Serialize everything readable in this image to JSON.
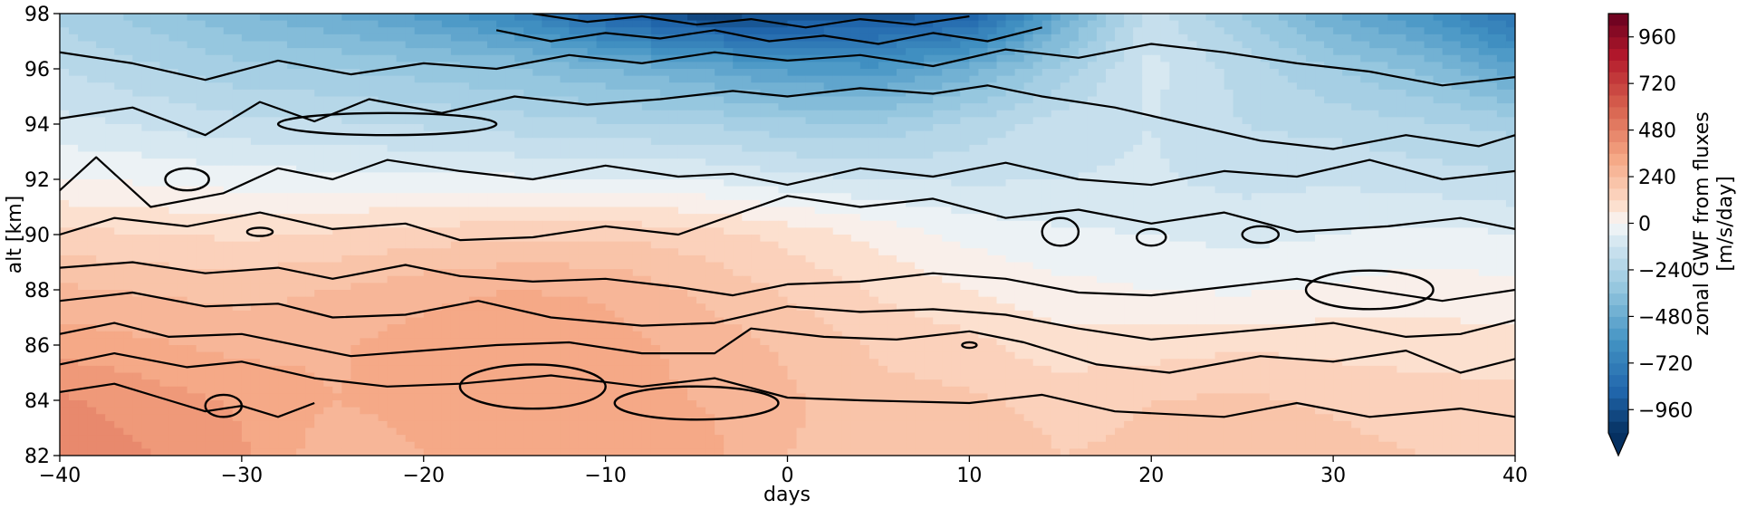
{
  "chart_data": {
    "type": "heatmap",
    "xlabel": "days",
    "ylabel": "alt [km]",
    "xlim": [
      -40,
      40
    ],
    "ylim": [
      82,
      98
    ],
    "xticks": [
      -40,
      -30,
      -20,
      -10,
      0,
      10,
      20,
      30,
      40
    ],
    "yticks": [
      82,
      84,
      86,
      88,
      90,
      92,
      94,
      96,
      98
    ],
    "grid": false,
    "colormap": "RdBu_r",
    "colorbar": {
      "label": "zonal GWF from fluxes\n[m/s/day]",
      "range": [
        -1080,
        1080
      ],
      "level_step": 60,
      "ticks": [
        -960,
        -720,
        -480,
        -240,
        0,
        240,
        480,
        720,
        960
      ],
      "extend": "min"
    },
    "field": {
      "x": [
        -40,
        -35,
        -30,
        -25,
        -20,
        -15,
        -10,
        -5,
        0,
        5,
        10,
        15,
        20,
        25,
        30,
        35,
        40
      ],
      "y": [
        82,
        84,
        86,
        88,
        90,
        92,
        94,
        96,
        98
      ],
      "values": [
        [
          460,
          420,
          370,
          260,
          300,
          320,
          310,
          330,
          240,
          220,
          230,
          180,
          190,
          220,
          200,
          180,
          150
        ],
        [
          430,
          390,
          350,
          300,
          320,
          340,
          320,
          300,
          250,
          200,
          190,
          160,
          180,
          190,
          170,
          150,
          140
        ],
        [
          340,
          310,
          280,
          290,
          330,
          360,
          330,
          280,
          230,
          170,
          140,
          80,
          90,
          110,
          100,
          90,
          80
        ],
        [
          250,
          230,
          220,
          240,
          280,
          300,
          290,
          230,
          170,
          110,
          60,
          20,
          0,
          -10,
          10,
          30,
          20
        ],
        [
          140,
          120,
          110,
          130,
          150,
          170,
          170,
          150,
          100,
          40,
          -20,
          -50,
          -60,
          -80,
          -60,
          -40,
          -60
        ],
        [
          0,
          -10,
          -30,
          -40,
          -40,
          -50,
          -60,
          -60,
          -100,
          -120,
          -130,
          -120,
          -110,
          -140,
          -130,
          -150,
          -170
        ],
        [
          -100,
          -130,
          -160,
          -170,
          -190,
          -210,
          -230,
          -240,
          -280,
          -290,
          -220,
          -150,
          -120,
          -180,
          -200,
          -230,
          -260
        ],
        [
          -180,
          -230,
          -280,
          -300,
          -330,
          -360,
          -420,
          -480,
          -560,
          -580,
          -460,
          -280,
          -100,
          -200,
          -300,
          -380,
          -520
        ],
        [
          -260,
          -330,
          -420,
          -480,
          -560,
          -680,
          -860,
          -1000,
          -980,
          -940,
          -900,
          -500,
          -150,
          -300,
          -480,
          -600,
          -800
        ]
      ]
    },
    "contour_lines": [
      {
        "polyline": [
          [
            -40,
            84.3
          ],
          [
            -37,
            84.6
          ],
          [
            -34,
            84.0
          ],
          [
            -32,
            83.6
          ],
          [
            -30,
            83.8
          ],
          [
            -28,
            83.4
          ],
          [
            -26,
            83.9
          ]
        ]
      },
      {
        "polyline": [
          [
            -40,
            85.3
          ],
          [
            -37,
            85.7
          ],
          [
            -33,
            85.2
          ],
          [
            -30,
            85.4
          ],
          [
            -26,
            84.8
          ],
          [
            -22,
            84.5
          ],
          [
            -18,
            84.6
          ],
          [
            -13,
            84.9
          ],
          [
            -8,
            84.5
          ],
          [
            -4,
            84.8
          ],
          [
            0,
            84.1
          ],
          [
            4,
            84.0
          ],
          [
            10,
            83.9
          ],
          [
            14,
            84.2
          ],
          [
            18,
            83.6
          ],
          [
            24,
            83.4
          ],
          [
            28,
            83.9
          ],
          [
            32,
            83.4
          ],
          [
            37,
            83.7
          ],
          [
            40,
            83.4
          ]
        ]
      },
      {
        "polyline": [
          [
            -40,
            86.4
          ],
          [
            -37,
            86.8
          ],
          [
            -34,
            86.3
          ],
          [
            -30,
            86.4
          ],
          [
            -27,
            86.0
          ],
          [
            -24,
            85.6
          ],
          [
            -20,
            85.8
          ],
          [
            -16,
            86.0
          ],
          [
            -12,
            86.1
          ],
          [
            -8,
            85.7
          ],
          [
            -4,
            85.7
          ],
          [
            -2,
            86.6
          ],
          [
            2,
            86.3
          ],
          [
            6,
            86.2
          ],
          [
            10,
            86.5
          ],
          [
            13,
            86.1
          ],
          [
            17,
            85.3
          ],
          [
            21,
            85.0
          ],
          [
            26,
            85.6
          ],
          [
            30,
            85.4
          ],
          [
            34,
            85.8
          ],
          [
            37,
            85.0
          ],
          [
            40,
            85.5
          ]
        ]
      },
      {
        "polyline": [
          [
            -40,
            87.6
          ],
          [
            -36,
            87.9
          ],
          [
            -32,
            87.4
          ],
          [
            -28,
            87.5
          ],
          [
            -25,
            87.0
          ],
          [
            -21,
            87.1
          ],
          [
            -17,
            87.6
          ],
          [
            -13,
            87.0
          ],
          [
            -8,
            86.7
          ],
          [
            -4,
            86.8
          ],
          [
            0,
            87.4
          ],
          [
            4,
            87.2
          ],
          [
            8,
            87.3
          ],
          [
            12,
            87.1
          ],
          [
            16,
            86.6
          ],
          [
            20,
            86.2
          ],
          [
            25,
            86.5
          ],
          [
            30,
            86.8
          ],
          [
            34,
            86.3
          ],
          [
            37,
            86.4
          ],
          [
            40,
            86.9
          ]
        ]
      },
      {
        "polyline": [
          [
            -40,
            88.8
          ],
          [
            -36,
            89.0
          ],
          [
            -32,
            88.6
          ],
          [
            -28,
            88.8
          ],
          [
            -25,
            88.4
          ],
          [
            -21,
            88.9
          ],
          [
            -18,
            88.5
          ],
          [
            -14,
            88.3
          ],
          [
            -10,
            88.4
          ],
          [
            -6,
            88.1
          ],
          [
            -3,
            87.8
          ],
          [
            0,
            88.2
          ],
          [
            4,
            88.3
          ],
          [
            8,
            88.6
          ],
          [
            12,
            88.4
          ],
          [
            16,
            87.9
          ],
          [
            20,
            87.8
          ],
          [
            24,
            88.1
          ],
          [
            28,
            88.4
          ],
          [
            32,
            88.0
          ],
          [
            36,
            87.6
          ],
          [
            40,
            88.0
          ]
        ]
      },
      {
        "polyline": [
          [
            -40,
            90.0
          ],
          [
            -37,
            90.6
          ],
          [
            -33,
            90.3
          ],
          [
            -29,
            90.8
          ],
          [
            -25,
            90.2
          ],
          [
            -21,
            90.4
          ],
          [
            -18,
            89.8
          ],
          [
            -14,
            89.9
          ],
          [
            -10,
            90.3
          ],
          [
            -6,
            90.0
          ],
          [
            -3,
            90.7
          ],
          [
            0,
            91.4
          ],
          [
            4,
            91.0
          ],
          [
            8,
            91.3
          ],
          [
            12,
            90.6
          ],
          [
            16,
            90.9
          ],
          [
            20,
            90.4
          ],
          [
            24,
            90.8
          ],
          [
            28,
            90.1
          ],
          [
            33,
            90.3
          ],
          [
            37,
            90.6
          ],
          [
            40,
            90.2
          ]
        ]
      },
      {
        "polyline": [
          [
            -40,
            91.6
          ],
          [
            -38,
            92.8
          ],
          [
            -35,
            91.0
          ],
          [
            -31,
            91.5
          ],
          [
            -28,
            92.4
          ],
          [
            -25,
            92.0
          ],
          [
            -22,
            92.7
          ],
          [
            -18,
            92.3
          ],
          [
            -14,
            92.0
          ],
          [
            -10,
            92.5
          ],
          [
            -6,
            92.1
          ],
          [
            -3,
            92.2
          ],
          [
            0,
            91.8
          ],
          [
            4,
            92.4
          ],
          [
            8,
            92.1
          ],
          [
            12,
            92.6
          ],
          [
            16,
            92.0
          ],
          [
            20,
            91.8
          ],
          [
            24,
            92.3
          ],
          [
            28,
            92.1
          ],
          [
            32,
            92.7
          ],
          [
            36,
            92.0
          ],
          [
            40,
            92.3
          ]
        ]
      },
      {
        "polyline": [
          [
            -40,
            94.2
          ],
          [
            -36,
            94.6
          ],
          [
            -32,
            93.6
          ],
          [
            -29,
            94.8
          ],
          [
            -26,
            94.1
          ],
          [
            -23,
            94.9
          ],
          [
            -19,
            94.4
          ],
          [
            -15,
            95.0
          ],
          [
            -11,
            94.7
          ],
          [
            -7,
            94.9
          ],
          [
            -3,
            95.2
          ],
          [
            0,
            95.0
          ],
          [
            4,
            95.3
          ],
          [
            8,
            95.1
          ],
          [
            11,
            95.4
          ],
          [
            14,
            95.0
          ],
          [
            18,
            94.6
          ],
          [
            22,
            94.0
          ],
          [
            26,
            93.4
          ],
          [
            30,
            93.1
          ],
          [
            34,
            93.6
          ],
          [
            38,
            93.2
          ],
          [
            40,
            93.6
          ]
        ]
      },
      {
        "polyline": [
          [
            -40,
            96.6
          ],
          [
            -36,
            96.2
          ],
          [
            -32,
            95.6
          ],
          [
            -28,
            96.3
          ],
          [
            -24,
            95.8
          ],
          [
            -20,
            96.2
          ],
          [
            -16,
            96.0
          ],
          [
            -12,
            96.5
          ],
          [
            -8,
            96.2
          ],
          [
            -4,
            96.6
          ],
          [
            0,
            96.3
          ],
          [
            4,
            96.5
          ],
          [
            8,
            96.1
          ],
          [
            12,
            96.7
          ],
          [
            16,
            96.4
          ],
          [
            20,
            96.9
          ],
          [
            24,
            96.6
          ],
          [
            28,
            96.2
          ],
          [
            32,
            95.9
          ],
          [
            36,
            95.4
          ],
          [
            40,
            95.7
          ]
        ]
      },
      {
        "polyline": [
          [
            -16,
            97.4
          ],
          [
            -13,
            97.0
          ],
          [
            -10,
            97.3
          ],
          [
            -7,
            97.1
          ],
          [
            -4,
            97.4
          ],
          [
            -1,
            97.0
          ],
          [
            2,
            97.2
          ],
          [
            5,
            96.9
          ],
          [
            8,
            97.3
          ],
          [
            11,
            97.0
          ],
          [
            14,
            97.5
          ]
        ]
      },
      {
        "polyline": [
          [
            -14,
            98.0
          ],
          [
            -11,
            97.7
          ],
          [
            -8,
            97.9
          ],
          [
            -5,
            97.6
          ],
          [
            -2,
            97.8
          ],
          [
            1,
            97.5
          ],
          [
            4,
            97.8
          ],
          [
            7,
            97.6
          ],
          [
            10,
            97.9
          ]
        ]
      }
    ],
    "closed_contours": [
      {
        "center": [
          -5,
          83.9
        ],
        "half_width": [
          4.5,
          0.6
        ]
      },
      {
        "center": [
          -14,
          84.5
        ],
        "half_width": [
          4,
          0.8
        ]
      },
      {
        "center": [
          -31,
          83.8
        ],
        "half_width": [
          1,
          0.4
        ]
      },
      {
        "center": [
          -33,
          92.0
        ],
        "half_width": [
          1.2,
          0.4
        ]
      },
      {
        "center": [
          -29,
          90.1
        ],
        "half_width": [
          0.7,
          0.15
        ]
      },
      {
        "center": [
          -22,
          94.0
        ],
        "half_width": [
          6,
          0.4
        ]
      },
      {
        "center": [
          10,
          86.0
        ],
        "half_width": [
          0.4,
          0.1
        ]
      },
      {
        "center": [
          20,
          89.9
        ],
        "half_width": [
          0.8,
          0.3
        ]
      },
      {
        "center": [
          26,
          90.0
        ],
        "half_width": [
          1,
          0.3
        ]
      },
      {
        "center": [
          15,
          90.1
        ],
        "half_width": [
          1,
          0.5
        ]
      },
      {
        "center": [
          32,
          88.0
        ],
        "half_width": [
          3.5,
          0.7
        ]
      }
    ]
  }
}
